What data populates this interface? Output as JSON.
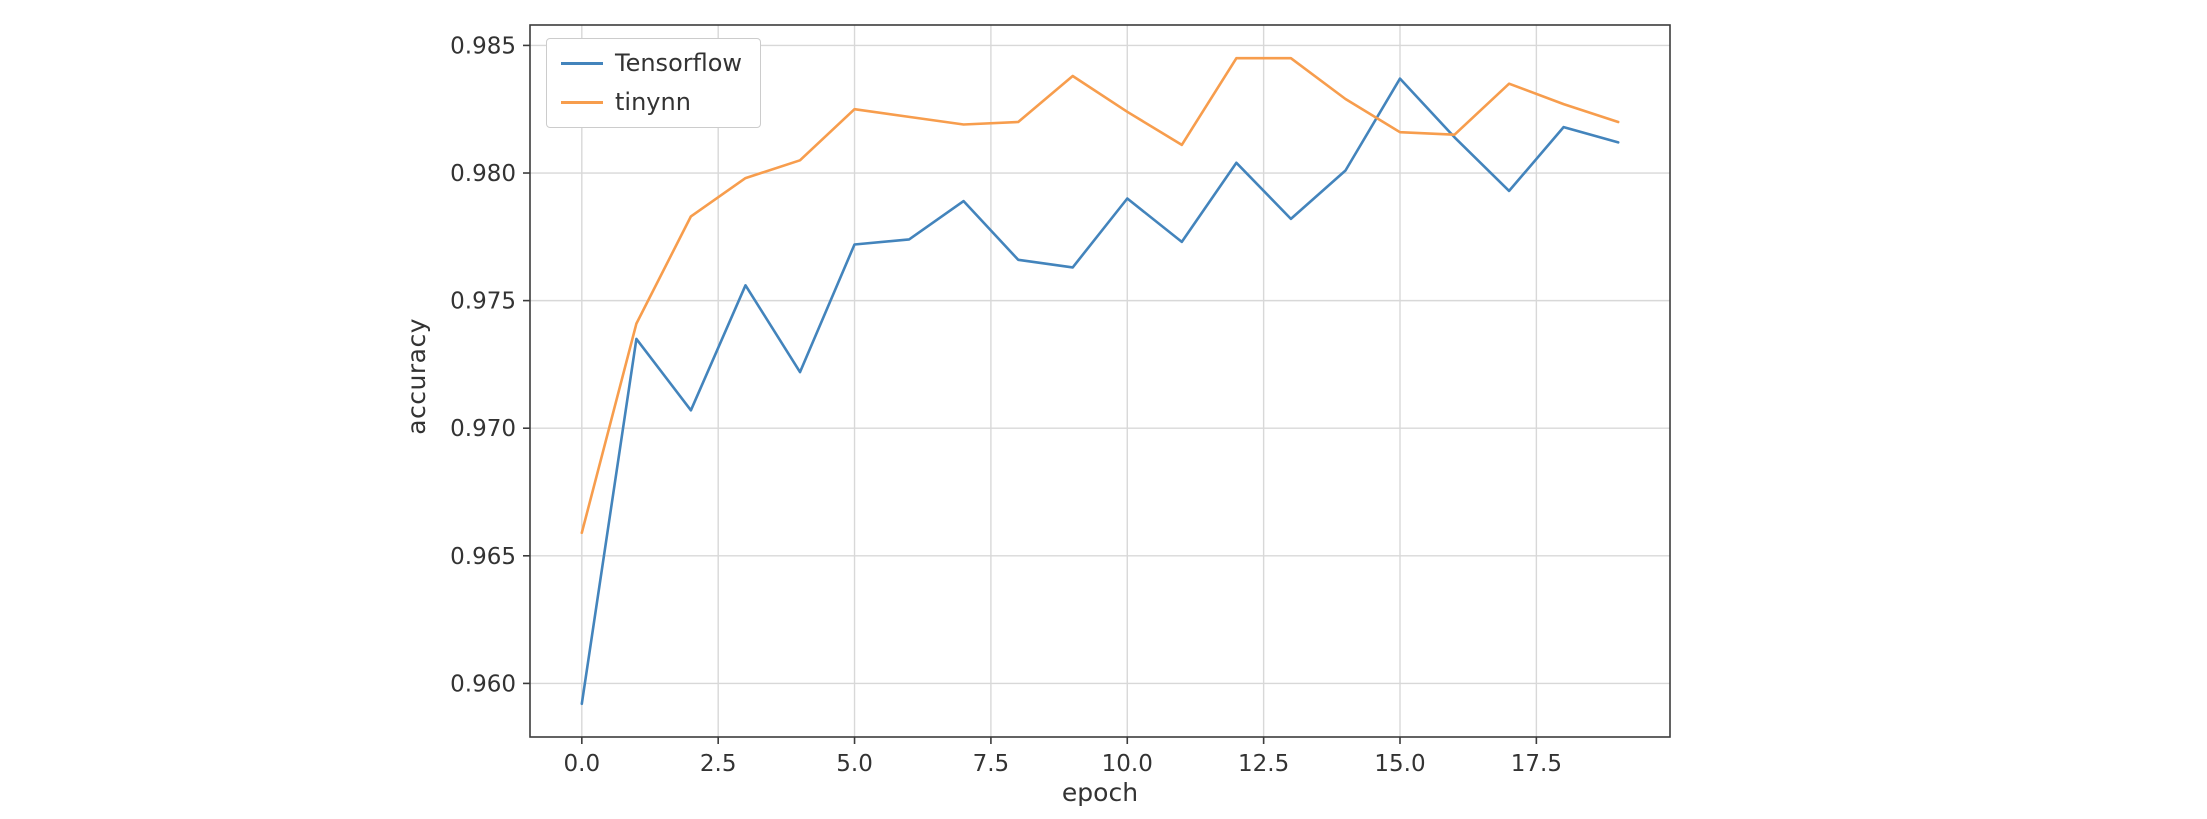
{
  "page": {
    "background_color": "#ffffff"
  },
  "chart_data": {
    "type": "line",
    "title": "",
    "xlabel": "epoch",
    "ylabel": "accuracy",
    "grid": true,
    "legend_position": "upper left",
    "xlim": [
      -0.95,
      19.95
    ],
    "ylim": [
      0.9579,
      0.9858
    ],
    "xticks": [
      0,
      2.5,
      5,
      7.5,
      10,
      12.5,
      15,
      17.5
    ],
    "xtick_labels": [
      "0.0",
      "2.5",
      "5.0",
      "7.5",
      "10.0",
      "12.5",
      "15.0",
      "17.5"
    ],
    "yticks": [
      0.96,
      0.965,
      0.97,
      0.975,
      0.98,
      0.985
    ],
    "ytick_labels": [
      "0.960",
      "0.965",
      "0.970",
      "0.975",
      "0.980",
      "0.985"
    ],
    "x": [
      0,
      1,
      2,
      3,
      4,
      5,
      6,
      7,
      8,
      9,
      10,
      11,
      12,
      13,
      14,
      15,
      16,
      17,
      18,
      19
    ],
    "series": [
      {
        "name": "Tensorflow",
        "color": "#4384bc",
        "values": [
          0.9592,
          0.9735,
          0.9707,
          0.9756,
          0.9722,
          0.9772,
          0.9774,
          0.9789,
          0.9766,
          0.9763,
          0.979,
          0.9773,
          0.9804,
          0.9782,
          0.9801,
          0.9837,
          0.9814,
          0.9793,
          0.9818,
          0.9812
        ]
      },
      {
        "name": "tinynn",
        "color": "#f79d4d",
        "values": [
          0.9659,
          0.9741,
          0.9783,
          0.9798,
          0.9805,
          0.9825,
          0.9822,
          0.9819,
          0.982,
          0.9838,
          0.9824,
          0.9811,
          0.9845,
          0.9845,
          0.9829,
          0.9816,
          0.9815,
          0.9835,
          0.9827,
          0.982
        ]
      }
    ],
    "colors": {
      "grid": "#d8d8d8",
      "spine": "#3c3c3c",
      "tick_text": "#333333",
      "plot_background": "#ffffff"
    }
  }
}
